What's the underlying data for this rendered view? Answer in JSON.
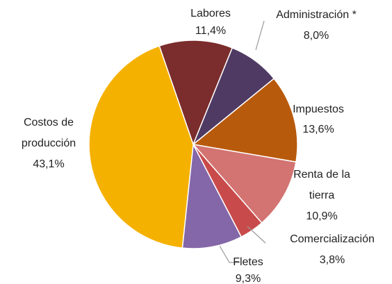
{
  "chart_data": {
    "type": "pie",
    "categories": [
      "Labores",
      "Administración *",
      "Impuestos",
      "Renta de la tierra",
      "Comercialización",
      "Fletes",
      "Costos de producción"
    ],
    "values": [
      11.4,
      8.0,
      13.6,
      10.9,
      3.8,
      9.3,
      43.1
    ],
    "value_labels": [
      "11,4%",
      "8,0%",
      "13,6%",
      "10,9%",
      "3,8%",
      "9,3%",
      "43,1%"
    ],
    "colors": [
      "#7b2c2c",
      "#4e3a63",
      "#b85a0c",
      "#d37472",
      "#c94a4a",
      "#8467a8",
      "#f5b100"
    ]
  }
}
